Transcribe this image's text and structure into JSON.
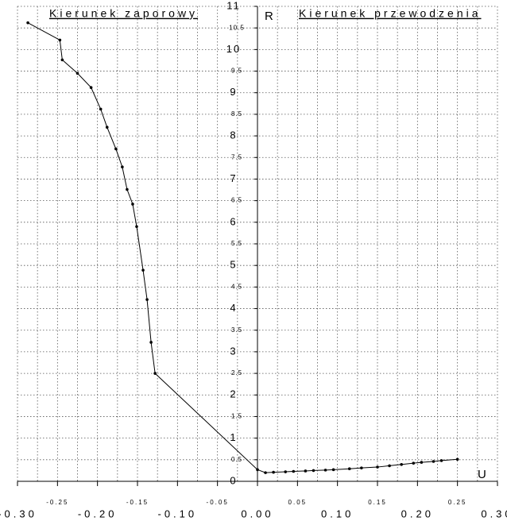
{
  "chart_data": {
    "type": "line",
    "title_left": "Kierunek zaporowy",
    "title_right": "Kierunek przewodzenia",
    "y_label": "R",
    "x_label": "U",
    "x": [
      -0.287,
      -0.247,
      -0.244,
      -0.225,
      -0.208,
      -0.196,
      -0.188,
      -0.177,
      -0.169,
      -0.163,
      -0.156,
      -0.151,
      -0.143,
      -0.138,
      -0.133,
      -0.128,
      0.0,
      0.01,
      0.02,
      0.035,
      0.045,
      0.06,
      0.07,
      0.085,
      0.095,
      0.115,
      0.13,
      0.15,
      0.165,
      0.18,
      0.195,
      0.205,
      0.22,
      0.23,
      0.25
    ],
    "series": [
      {
        "color": "#000000",
        "values": [
          10.62,
          10.22,
          9.76,
          9.45,
          9.12,
          8.62,
          8.2,
          7.7,
          7.28,
          6.76,
          6.42,
          5.9,
          4.89,
          4.21,
          3.22,
          2.5,
          0.27,
          0.2,
          0.21,
          0.22,
          0.23,
          0.24,
          0.25,
          0.26,
          0.27,
          0.29,
          0.31,
          0.33,
          0.36,
          0.39,
          0.42,
          0.44,
          0.46,
          0.48,
          0.51
        ]
      }
    ],
    "xlim": [
      -0.3,
      0.3
    ],
    "ylim": [
      0,
      11
    ],
    "xticks": [
      {
        "value": -0.3,
        "label": "-0.30"
      },
      {
        "value": -0.25,
        "label": "-0.25"
      },
      {
        "value": -0.2,
        "label": "-0.20"
      },
      {
        "value": -0.15,
        "label": "-0.15"
      },
      {
        "value": -0.1,
        "label": "-0.10"
      },
      {
        "value": -0.05,
        "label": "-0.05"
      },
      {
        "value": 0,
        "label": "0.00"
      },
      {
        "value": 0.05,
        "label": "0.05"
      },
      {
        "value": 0.1,
        "label": "0.10"
      },
      {
        "value": 0.15,
        "label": "0.15"
      },
      {
        "value": 0.2,
        "label": "0.20"
      },
      {
        "value": 0.25,
        "label": "0.25"
      },
      {
        "value": 0.3,
        "label": "0.30"
      }
    ],
    "yticks": [
      0,
      0.5,
      1,
      1.5,
      2,
      2.5,
      3,
      3.5,
      4,
      4.5,
      5,
      5.5,
      6,
      6.5,
      7,
      7.5,
      8,
      8.5,
      9,
      9.5,
      10,
      10.5,
      11
    ],
    "grid": true
  }
}
